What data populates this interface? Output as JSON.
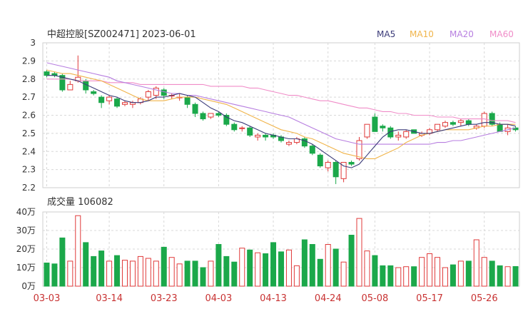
{
  "header": {
    "title": "中超控股[SZ002471] 2023-06-01",
    "legend": [
      {
        "label": "MA5",
        "color": "#3a3a78"
      },
      {
        "label": "MA10",
        "color": "#f0b44a"
      },
      {
        "label": "MA20",
        "color": "#b77ee0"
      },
      {
        "label": "MA60",
        "color": "#f08cc8"
      }
    ]
  },
  "colors": {
    "up": "#e03a3a",
    "down": "#1ba84a",
    "grid": "#d8d8d8",
    "axis_text": "#333333",
    "date_text": "#c83232"
  },
  "chart_data": [
    {
      "type": "candlestick",
      "title": "中超控股[SZ002471] 2023-06-01",
      "ylim": [
        2.2,
        3.0
      ],
      "yticks": [
        "3",
        "2.9",
        "2.8",
        "2.7",
        "2.6",
        "2.5",
        "2.4",
        "2.3",
        "2.2"
      ],
      "ohlc": [
        [
          2.84,
          2.85,
          2.81,
          2.82
        ],
        [
          2.83,
          2.84,
          2.81,
          2.82
        ],
        [
          2.82,
          2.83,
          2.73,
          2.74
        ],
        [
          2.74,
          2.79,
          2.74,
          2.77
        ],
        [
          2.79,
          2.93,
          2.78,
          2.81
        ],
        [
          2.79,
          2.8,
          2.72,
          2.74
        ],
        [
          2.73,
          2.74,
          2.71,
          2.72
        ],
        [
          2.7,
          2.71,
          2.64,
          2.67
        ],
        [
          2.68,
          2.71,
          2.66,
          2.7
        ],
        [
          2.69,
          2.7,
          2.64,
          2.65
        ],
        [
          2.66,
          2.68,
          2.65,
          2.67
        ],
        [
          2.66,
          2.68,
          2.64,
          2.67
        ],
        [
          2.67,
          2.7,
          2.66,
          2.69
        ],
        [
          2.7,
          2.74,
          2.68,
          2.73
        ],
        [
          2.71,
          2.76,
          2.69,
          2.75
        ],
        [
          2.74,
          2.75,
          2.69,
          2.71
        ],
        [
          2.71,
          2.72,
          2.69,
          2.71
        ],
        [
          2.7,
          2.72,
          2.68,
          2.7
        ],
        [
          2.7,
          2.71,
          2.64,
          2.66
        ],
        [
          2.66,
          2.67,
          2.59,
          2.61
        ],
        [
          2.61,
          2.62,
          2.57,
          2.58
        ],
        [
          2.59,
          2.61,
          2.58,
          2.61
        ],
        [
          2.61,
          2.62,
          2.59,
          2.6
        ],
        [
          2.6,
          2.61,
          2.54,
          2.55
        ],
        [
          2.55,
          2.56,
          2.51,
          2.52
        ],
        [
          2.53,
          2.54,
          2.51,
          2.53
        ],
        [
          2.53,
          2.54,
          2.48,
          2.49
        ],
        [
          2.48,
          2.5,
          2.46,
          2.49
        ],
        [
          2.49,
          2.5,
          2.46,
          2.48
        ],
        [
          2.49,
          2.5,
          2.47,
          2.48
        ],
        [
          2.48,
          2.49,
          2.45,
          2.46
        ],
        [
          2.44,
          2.46,
          2.43,
          2.45
        ],
        [
          2.45,
          2.48,
          2.44,
          2.47
        ],
        [
          2.47,
          2.48,
          2.42,
          2.43
        ],
        [
          2.43,
          2.44,
          2.38,
          2.39
        ],
        [
          2.38,
          2.39,
          2.31,
          2.32
        ],
        [
          2.31,
          2.35,
          2.29,
          2.34
        ],
        [
          2.34,
          2.35,
          2.22,
          2.26
        ],
        [
          2.25,
          2.34,
          2.23,
          2.34
        ],
        [
          2.34,
          2.35,
          2.32,
          2.33
        ],
        [
          2.36,
          2.48,
          2.35,
          2.46
        ],
        [
          2.48,
          2.55,
          2.47,
          2.55
        ],
        [
          2.59,
          2.61,
          2.51,
          2.51
        ],
        [
          2.54,
          2.55,
          2.51,
          2.53
        ],
        [
          2.53,
          2.54,
          2.47,
          2.48
        ],
        [
          2.48,
          2.51,
          2.46,
          2.49
        ],
        [
          2.48,
          2.52,
          2.47,
          2.51
        ],
        [
          2.52,
          2.52,
          2.5,
          2.5
        ],
        [
          2.49,
          2.51,
          2.48,
          2.5
        ],
        [
          2.5,
          2.53,
          2.49,
          2.52
        ],
        [
          2.52,
          2.55,
          2.51,
          2.55
        ],
        [
          2.54,
          2.57,
          2.53,
          2.56
        ],
        [
          2.56,
          2.57,
          2.54,
          2.55
        ],
        [
          2.56,
          2.58,
          2.54,
          2.57
        ],
        [
          2.57,
          2.58,
          2.54,
          2.55
        ],
        [
          2.53,
          2.55,
          2.52,
          2.54
        ],
        [
          2.54,
          2.62,
          2.53,
          2.61
        ],
        [
          2.61,
          2.62,
          2.54,
          2.55
        ],
        [
          2.55,
          2.56,
          2.51,
          2.51
        ],
        [
          2.51,
          2.55,
          2.49,
          2.53
        ],
        [
          2.53,
          2.54,
          2.51,
          2.52
        ]
      ],
      "ma": {
        "MA5": [
          2.82,
          2.82,
          2.81,
          2.8,
          2.79,
          2.77,
          2.75,
          2.73,
          2.71,
          2.7,
          2.68,
          2.67,
          2.67,
          2.68,
          2.7,
          2.7,
          2.71,
          2.72,
          2.71,
          2.7,
          2.67,
          2.64,
          2.62,
          2.59,
          2.57,
          2.56,
          2.54,
          2.52,
          2.5,
          2.49,
          2.48,
          2.47,
          2.47,
          2.46,
          2.44,
          2.41,
          2.38,
          2.35,
          2.32,
          2.31,
          2.33,
          2.38,
          2.43,
          2.48,
          2.51,
          2.52,
          2.52,
          2.51,
          2.5,
          2.5,
          2.51,
          2.52,
          2.53,
          2.54,
          2.55,
          2.55,
          2.56,
          2.56,
          2.55,
          2.55,
          2.54
        ],
        "MA10": [
          2.85,
          2.84,
          2.83,
          2.83,
          2.82,
          2.81,
          2.8,
          2.79,
          2.77,
          2.75,
          2.73,
          2.71,
          2.69,
          2.68,
          2.68,
          2.68,
          2.69,
          2.7,
          2.7,
          2.7,
          2.69,
          2.68,
          2.67,
          2.66,
          2.64,
          2.62,
          2.6,
          2.58,
          2.56,
          2.54,
          2.52,
          2.51,
          2.5,
          2.48,
          2.47,
          2.45,
          2.43,
          2.41,
          2.39,
          2.38,
          2.37,
          2.36,
          2.36,
          2.38,
          2.4,
          2.42,
          2.45,
          2.47,
          2.49,
          2.5,
          2.51,
          2.52,
          2.52,
          2.52,
          2.52,
          2.53,
          2.54,
          2.54,
          2.55,
          2.55,
          2.55
        ],
        "MA20": [
          2.89,
          2.88,
          2.87,
          2.86,
          2.85,
          2.84,
          2.83,
          2.82,
          2.81,
          2.79,
          2.78,
          2.77,
          2.76,
          2.75,
          2.74,
          2.73,
          2.72,
          2.72,
          2.71,
          2.71,
          2.7,
          2.69,
          2.68,
          2.67,
          2.66,
          2.65,
          2.64,
          2.63,
          2.62,
          2.61,
          2.6,
          2.59,
          2.57,
          2.55,
          2.53,
          2.51,
          2.49,
          2.47,
          2.46,
          2.45,
          2.44,
          2.44,
          2.44,
          2.44,
          2.44,
          2.44,
          2.44,
          2.44,
          2.44,
          2.44,
          2.45,
          2.45,
          2.46,
          2.46,
          2.47,
          2.48,
          2.49,
          2.5,
          2.51,
          2.52,
          2.53
        ],
        "MA60": [
          2.8,
          2.8,
          2.8,
          2.8,
          2.79,
          2.79,
          2.79,
          2.79,
          2.78,
          2.78,
          2.78,
          2.78,
          2.77,
          2.77,
          2.77,
          2.77,
          2.77,
          2.77,
          2.77,
          2.77,
          2.77,
          2.76,
          2.76,
          2.76,
          2.76,
          2.76,
          2.75,
          2.75,
          2.74,
          2.73,
          2.72,
          2.71,
          2.71,
          2.7,
          2.69,
          2.68,
          2.68,
          2.67,
          2.66,
          2.65,
          2.64,
          2.64,
          2.63,
          2.62,
          2.62,
          2.61,
          2.61,
          2.6,
          2.6,
          2.6,
          2.59,
          2.59,
          2.59,
          2.58,
          2.58,
          2.58,
          2.58,
          2.57,
          2.57,
          2.57,
          2.56
        ]
      }
    },
    {
      "type": "bar",
      "title": "成交量 106082",
      "ylim": [
        0,
        40
      ],
      "yticks": [
        "40万",
        "30万",
        "20万",
        "10万",
        "0万"
      ],
      "xticks": [
        {
          "index": 0,
          "label": "03-03"
        },
        {
          "index": 8,
          "label": "03-14"
        },
        {
          "index": 15,
          "label": "03-23"
        },
        {
          "index": 22,
          "label": "04-03"
        },
        {
          "index": 29,
          "label": "04-13"
        },
        {
          "index": 36,
          "label": "04-24"
        },
        {
          "index": 42,
          "label": "05-08"
        },
        {
          "index": 49,
          "label": "05-17"
        },
        {
          "index": 56,
          "label": "05-26"
        }
      ],
      "values": [
        12.5,
        12,
        26,
        13.5,
        38,
        23.5,
        16,
        19,
        13.5,
        16.5,
        14,
        13.5,
        16,
        15,
        13.5,
        21,
        15.5,
        12,
        13.5,
        13.5,
        10,
        13.5,
        22.5,
        16,
        13,
        20.5,
        19.5,
        18,
        17.5,
        23.5,
        18.5,
        19.5,
        11,
        25,
        22.5,
        14.5,
        22.5,
        20,
        13,
        27.5,
        36.5,
        19,
        16.5,
        11,
        11,
        10,
        10.5,
        10.5,
        15.5,
        17.5,
        15.5,
        10,
        11.5,
        13.5,
        13.5,
        25,
        15.5,
        13.5,
        11,
        10.5,
        10.6
      ]
    }
  ]
}
